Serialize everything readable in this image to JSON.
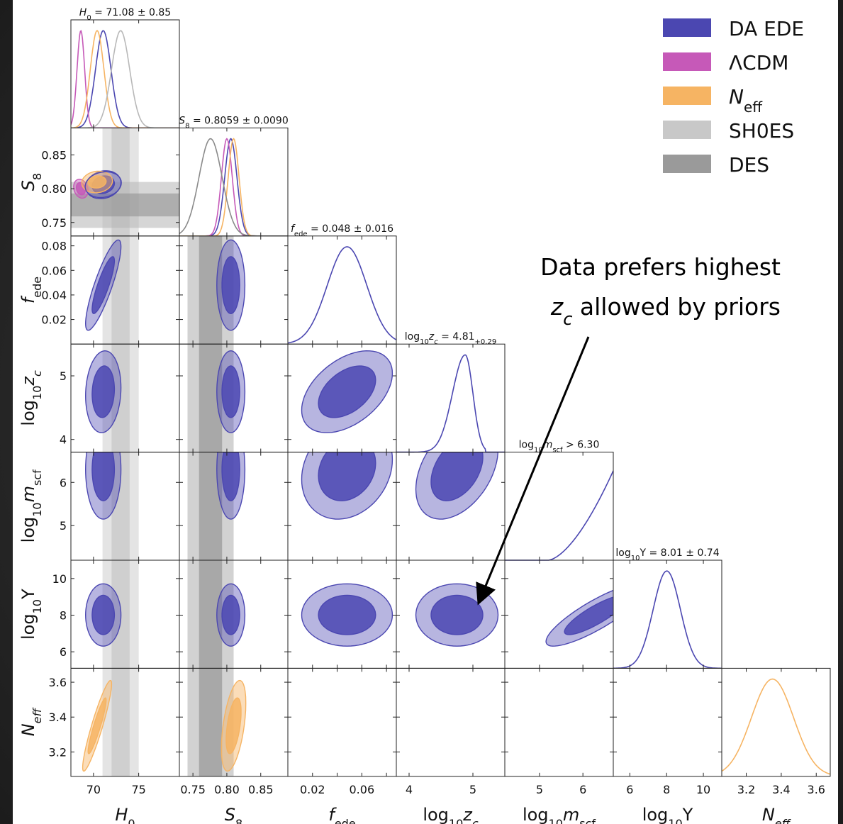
{
  "chart_data": {
    "type": "triangle-corner-plot",
    "parameters": [
      {
        "key": "H0",
        "label": "H₀",
        "ticks": [
          70,
          75
        ],
        "range": [
          67.5,
          79.5
        ]
      },
      {
        "key": "S8",
        "label": "S₈",
        "ticks": [
          0.75,
          0.8,
          0.85
        ],
        "tick_labels": [
          "0.75",
          "0.80",
          "0.85"
        ],
        "range": [
          0.73,
          0.89
        ]
      },
      {
        "key": "fede",
        "label": "f_ede",
        "ticks": [
          0.02,
          0.04,
          0.06,
          0.08
        ],
        "tick_labels": [
          "0.02",
          "0.04",
          "0.06",
          "0.08"
        ],
        "range": [
          0.0,
          0.088
        ]
      },
      {
        "key": "logzc",
        "label": "log₁₀z_c",
        "ticks": [
          4,
          5
        ],
        "range": [
          3.8,
          5.5
        ]
      },
      {
        "key": "logmscf",
        "label": "log₁₀m_scf",
        "ticks": [
          5,
          6
        ],
        "range": [
          4.2,
          6.7
        ]
      },
      {
        "key": "logY",
        "label": "log₁₀Y",
        "ticks": [
          6,
          8,
          10
        ],
        "range": [
          5.1,
          11.0
        ]
      },
      {
        "key": "Neff",
        "label": "N_eff",
        "ticks": [
          3.2,
          3.4,
          3.6
        ],
        "range": [
          3.06,
          3.68
        ]
      }
    ],
    "xtick_labels": [
      [
        "70",
        "75"
      ],
      [
        "0.75",
        "0.80",
        "0.85"
      ],
      [
        "0.02",
        "0.06"
      ],
      [
        "4",
        "5"
      ],
      [
        "5",
        "6"
      ],
      [
        "6",
        "8",
        "10"
      ],
      [
        "3.2",
        "3.4",
        "3.6"
      ]
    ],
    "xlabels": [
      "H",
      "S",
      "f",
      "log",
      "log",
      "log",
      "N"
    ],
    "row_ticks": {
      "S8": [
        "0.85",
        "0.80",
        "0.75"
      ],
      "fede": [
        "0.08",
        "0.06",
        "0.04",
        "0.02"
      ],
      "logzc": [
        "5",
        "4"
      ],
      "logmscf": [
        "6",
        "5"
      ],
      "logY": [
        "10",
        "8",
        "6"
      ],
      "Neff": [
        "3.6",
        "3.4",
        "3.2"
      ]
    },
    "diag_titles": [
      "= 71.08 ± 0.85",
      "= 0.8059 ± 0.0090",
      "= 0.048 ± 0.016",
      "= 4.81",
      "> 6.30",
      "= 8.01 ± 0.74",
      ""
    ],
    "series": [
      {
        "name": "DA EDE",
        "color": "#4b47b1"
      },
      {
        "name": "ΛCDM",
        "color": "#c659b8"
      },
      {
        "name": "N_eff",
        "color": "#f6b463"
      },
      {
        "name": "SH0ES",
        "color": "#c8c8c8"
      },
      {
        "name": "DES",
        "color": "#9a9a9a"
      }
    ],
    "constraints": {
      "SH0ES_H0": {
        "center": 73.0,
        "sigma": 1.0
      },
      "DES_S8": {
        "center": 0.776,
        "sigma": 0.017
      }
    },
    "posteriors_1d": {
      "H0": [
        {
          "series": "DA EDE",
          "mean": 71.08,
          "sigma": 0.85
        },
        {
          "series": "ΛCDM",
          "mean": 68.6,
          "sigma": 0.42
        },
        {
          "series": "N_eff",
          "mean": 70.4,
          "sigma": 0.75
        },
        {
          "series": "SH0ES",
          "mean": 73.0,
          "sigma": 1.0
        }
      ],
      "S8": [
        {
          "series": "DA EDE",
          "mean": 0.8059,
          "sigma": 0.009
        },
        {
          "series": "ΛCDM",
          "mean": 0.8,
          "sigma": 0.008
        },
        {
          "series": "N_eff",
          "mean": 0.81,
          "sigma": 0.008
        },
        {
          "series": "DES",
          "mean": 0.776,
          "sigma": 0.017
        }
      ],
      "fede": [
        {
          "series": "DA EDE",
          "mean": 0.048,
          "sigma": 0.016
        }
      ],
      "logY": [
        {
          "series": "DA EDE",
          "mean": 8.01,
          "sigma": 0.74
        }
      ],
      "Neff": [
        {
          "series": "N_eff",
          "mean": 3.35,
          "sigma": 0.12
        }
      ]
    }
  },
  "legend": {
    "items": [
      {
        "label": "DA EDE",
        "color": "#4b47b1"
      },
      {
        "label": "ΛCDM",
        "color": "#c659b8"
      },
      {
        "label": "N_eff",
        "color": "#f6b463"
      },
      {
        "label": "SH0ES",
        "color": "#c8c8c8"
      },
      {
        "label": "DES",
        "color": "#9a9a9a"
      }
    ]
  },
  "annotation": {
    "line1": "Data prefers highest",
    "line2_var": "z_c",
    "line2_rest": " allowed by priors"
  }
}
